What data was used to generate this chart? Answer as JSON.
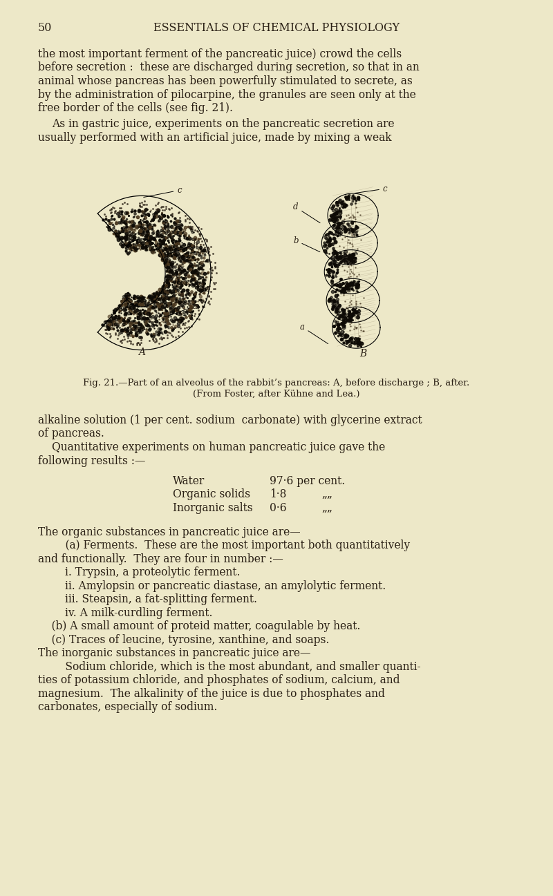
{
  "background_color": "#ede8c8",
  "page_number": "50",
  "header": "ESSENTIALS OF CHEMICAL PHYSIOLOGY",
  "text_color": "#2a2015",
  "font_size_body": 11.2,
  "font_size_header": 11.5,
  "font_size_caption": 9.5,
  "fig_caption_line1": "Fig. 21.—Part of an alveolus of the rabbit’s pancreas: A, before discharge ; B, after.",
  "fig_caption_line2": "(From Foster, after Kühne and Lea.)"
}
